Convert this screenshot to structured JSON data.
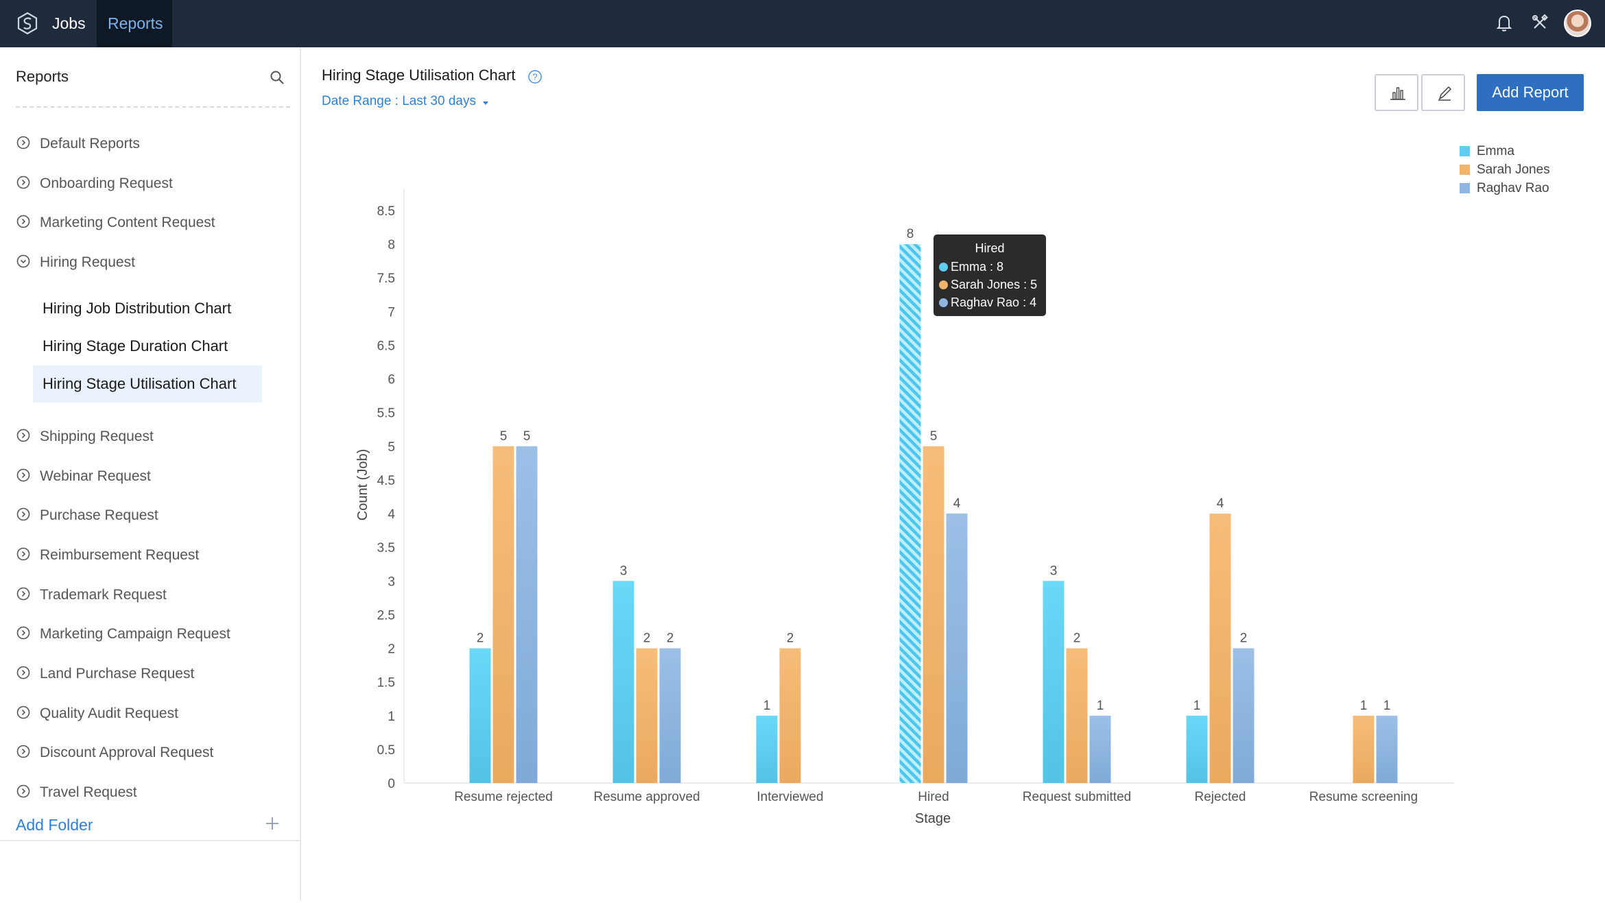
{
  "topbar": {
    "nav": [
      "Jobs",
      "Reports"
    ]
  },
  "sidebar": {
    "title": "Reports",
    "items_top": [
      "Default Reports",
      "Onboarding Request",
      "Marketing Content Request",
      "Hiring Request"
    ],
    "sub_items": [
      "Hiring Job Distribution Chart",
      "Hiring Stage Duration Chart",
      "Hiring Stage Utilisation Chart"
    ],
    "items_bottom": [
      "Shipping Request",
      "Webinar Request",
      "Purchase Request",
      "Reimbursement Request",
      "Trademark Request",
      "Marketing Campaign Request",
      "Land Purchase Request",
      "Quality Audit Request",
      "Discount Approval Request",
      "Travel Request"
    ],
    "add_folder": "Add Folder"
  },
  "header": {
    "title": "Hiring Stage Utilisation Chart",
    "date_range": "Date Range : Last 30 days",
    "add_report": "Add Report"
  },
  "tooltip": {
    "title": "Hired",
    "rows": [
      "Emma : 8",
      "Sarah Jones : 5",
      "Raghav Rao : 4"
    ]
  },
  "colors": {
    "emma": "#5dcdf0",
    "sarah": "#f2b36b",
    "raghav": "#8fb6e0",
    "accent": "#2f6fbf"
  },
  "chart_data": {
    "type": "bar",
    "title": "Hiring Stage Utilisation Chart",
    "xlabel": "Stage",
    "ylabel": "Count (Job)",
    "ylim": [
      0,
      8.5
    ],
    "yticks": [
      "0",
      "0.5",
      "1",
      "1.5",
      "2",
      "2.5",
      "3",
      "3.5",
      "4",
      "4.5",
      "5",
      "5.5",
      "6",
      "6.5",
      "7",
      "7.5",
      "8",
      "8.5"
    ],
    "categories": [
      "Resume rejected",
      "Resume approved",
      "Interviewed",
      "Hired",
      "Request submitted",
      "Rejected",
      "Resume screening"
    ],
    "series": [
      {
        "name": "Emma",
        "values": [
          2,
          3,
          1,
          8,
          3,
          1,
          null
        ]
      },
      {
        "name": "Sarah Jones",
        "values": [
          5,
          2,
          2,
          5,
          2,
          4,
          1
        ]
      },
      {
        "name": "Raghav Rao",
        "values": [
          5,
          2,
          null,
          4,
          1,
          2,
          1
        ]
      }
    ],
    "highlighted": {
      "category": "Hired",
      "series": "Emma"
    },
    "legend_position": "top-right"
  }
}
